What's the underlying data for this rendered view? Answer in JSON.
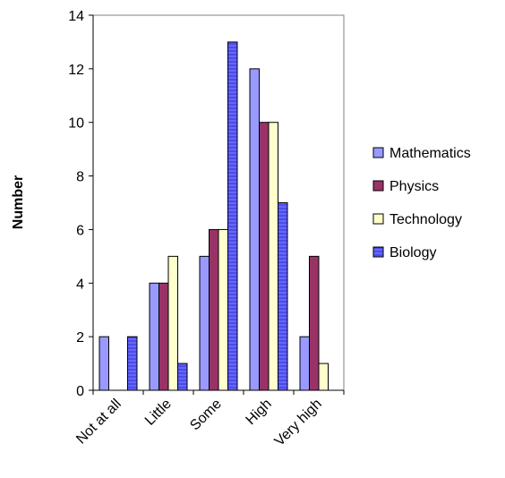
{
  "chart_data": {
    "type": "bar",
    "ylabel": "Number",
    "xlabel": "",
    "ylim": [
      0,
      14
    ],
    "yticks": [
      0,
      2,
      4,
      6,
      8,
      10,
      12,
      14
    ],
    "categories": [
      "Not at all",
      "Little",
      "Some",
      "High",
      "Very high"
    ],
    "series": [
      {
        "name": "Mathematics",
        "color": "#9999ff",
        "values": [
          2,
          4,
          5,
          12,
          2
        ]
      },
      {
        "name": "Physics",
        "color": "#993366",
        "values": [
          0,
          4,
          6,
          10,
          5
        ]
      },
      {
        "name": "Technology",
        "color": "#ffffcc",
        "values": [
          0,
          5,
          6,
          10,
          1
        ]
      },
      {
        "name": "Biology",
        "color": "#6666ff",
        "values": [
          2,
          1,
          13,
          7,
          0
        ]
      }
    ],
    "grid": false,
    "legend": "right",
    "plot_border": "#808080"
  }
}
